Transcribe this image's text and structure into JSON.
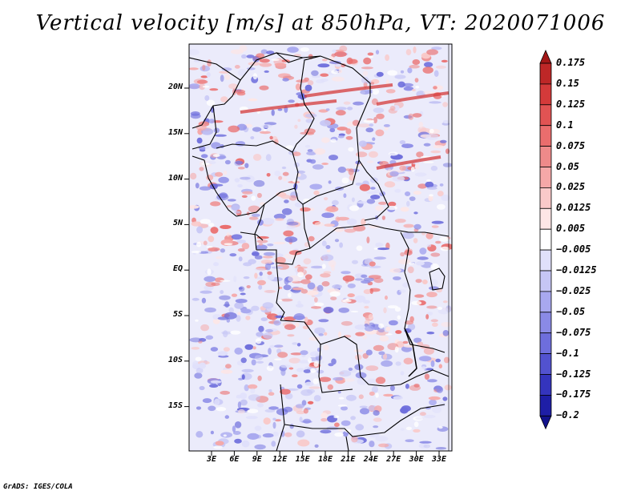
{
  "title": "Vertical velocity [m/s] at 850hPa, VT: 2020071006",
  "map": {
    "y_ticks": [
      "20N",
      "15N",
      "10N",
      "5N",
      "EQ",
      "5S",
      "10S",
      "15S"
    ],
    "x_ticks": [
      "3E",
      "6E",
      "9E",
      "12E",
      "15E",
      "18E",
      "21E",
      "24E",
      "27E",
      "30E",
      "33E"
    ]
  },
  "colorbar": {
    "labels": [
      "0.175",
      "0.15",
      "0.125",
      "0.1",
      "0.075",
      "0.05",
      "0.025",
      "0.0125",
      "0.005",
      "−0.005",
      "−0.0125",
      "−0.025",
      "−0.05",
      "−0.075",
      "−0.1",
      "−0.125",
      "−0.175",
      "−0.2"
    ],
    "colors": [
      "#a31717",
      "#be2727",
      "#d43a3a",
      "#e15353",
      "#ea6d6d",
      "#ee8a8a",
      "#f5a8a8",
      "#f9c9c9",
      "#fde6e6",
      "#ffffff",
      "#e0e0fb",
      "#c6c6f5",
      "#a8a8ef",
      "#8a8ae6",
      "#6e6edc",
      "#5252cf",
      "#3434bd",
      "#1e1ea6",
      "#12128c"
    ]
  },
  "credit": "GrADS: IGES/COLA"
}
